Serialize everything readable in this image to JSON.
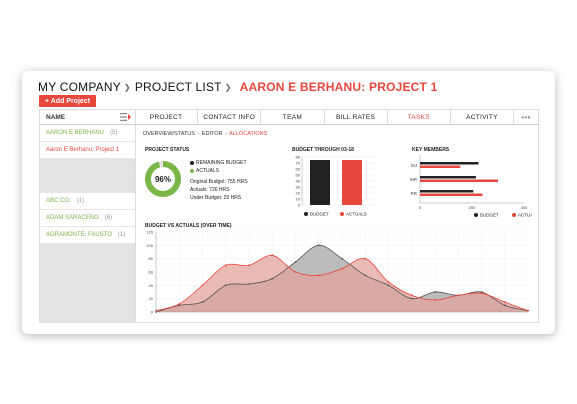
{
  "breadcrumb": {
    "company": "MY COMPANY",
    "list": "PROJECT LIST",
    "current": "AARON E BERHANU: PROJECT 1"
  },
  "add_button": "+ Add Project",
  "sidebar": {
    "header": "NAME",
    "items": [
      {
        "label": "AARON E BERHANU",
        "count": "(5)"
      },
      {
        "label": "Aaron E Berhanu: Project 1",
        "count": ""
      },
      {
        "label": "ABC CO.",
        "count": "(1)"
      },
      {
        "label": "ADAM SARACENO",
        "count": "(6)"
      },
      {
        "label": "AGRAMONTE, FAUSTO",
        "count": "(1)"
      }
    ]
  },
  "tabs": [
    "PROJECT",
    "CONTACT INFO",
    "TEAM",
    "BILL RATES",
    "TASKS",
    "ACTIVITY",
    "•••"
  ],
  "active_tab": "TASKS",
  "subnav": {
    "overview": "OVERVIEW/STATUS",
    "editor": "EDITOR",
    "allocations": "ALLOCATIONS"
  },
  "project_status": {
    "title": "PROJECT STATUS",
    "percent": "96%",
    "percent_value": 0.96,
    "legend_remaining": "REMAINING BUDGET",
    "legend_actuals": "ACTUALS",
    "original_budget": "Original Budget: 755 HRS",
    "actuals": "Actuals: 726 HRS",
    "under_budget": "Under Budget: 29 HRS"
  },
  "colors": {
    "accent": "#e8473d",
    "green": "#7ab648",
    "dark": "#222222",
    "gray_area": "#b5b5b5",
    "red_area": "#e3a49c"
  },
  "chart_data": [
    {
      "type": "bar",
      "title": "BUDGET THROUGH 03-18",
      "categories": [
        "BUDGET",
        "ACTUALS"
      ],
      "values": [
        75,
        75
      ],
      "yticks": [
        "0",
        "10",
        "20",
        "30",
        "40",
        "50",
        "60",
        "70",
        "80"
      ],
      "ylim": [
        0,
        80
      ],
      "legend": [
        "BUDGET",
        "ACTUALS"
      ]
    },
    {
      "type": "bar",
      "title": "KEY MEMBERS",
      "categories": [
        "MJ",
        "MR",
        "RR"
      ],
      "series": [
        {
          "name": "BUDGET",
          "values": [
            225,
            215,
            205
          ]
        },
        {
          "name": "ACTUALS",
          "values": [
            155,
            300,
            240
          ]
        }
      ],
      "xticks": [
        "0",
        "200",
        "400"
      ],
      "xlim": [
        0,
        400
      ],
      "legend": [
        "BUDGET",
        "ACTUALS"
      ]
    },
    {
      "type": "area",
      "title": "BUDGET VS ACTUALS (OVER TIME)",
      "x": [
        0,
        1,
        2,
        3,
        4,
        5,
        6,
        7,
        8,
        9,
        10,
        11,
        12,
        13,
        14,
        15,
        16
      ],
      "series": [
        {
          "name": "BUDGET",
          "values": [
            0,
            10,
            15,
            40,
            42,
            50,
            75,
            100,
            80,
            55,
            40,
            20,
            30,
            25,
            30,
            10,
            2
          ]
        },
        {
          "name": "ACTUALS",
          "values": [
            2,
            12,
            40,
            70,
            70,
            85,
            60,
            55,
            65,
            80,
            45,
            25,
            18,
            25,
            28,
            15,
            2
          ]
        }
      ],
      "yticks": [
        "0",
        "20",
        "40",
        "60",
        "80",
        "100",
        "120"
      ],
      "ylim": [
        0,
        120
      ]
    }
  ]
}
